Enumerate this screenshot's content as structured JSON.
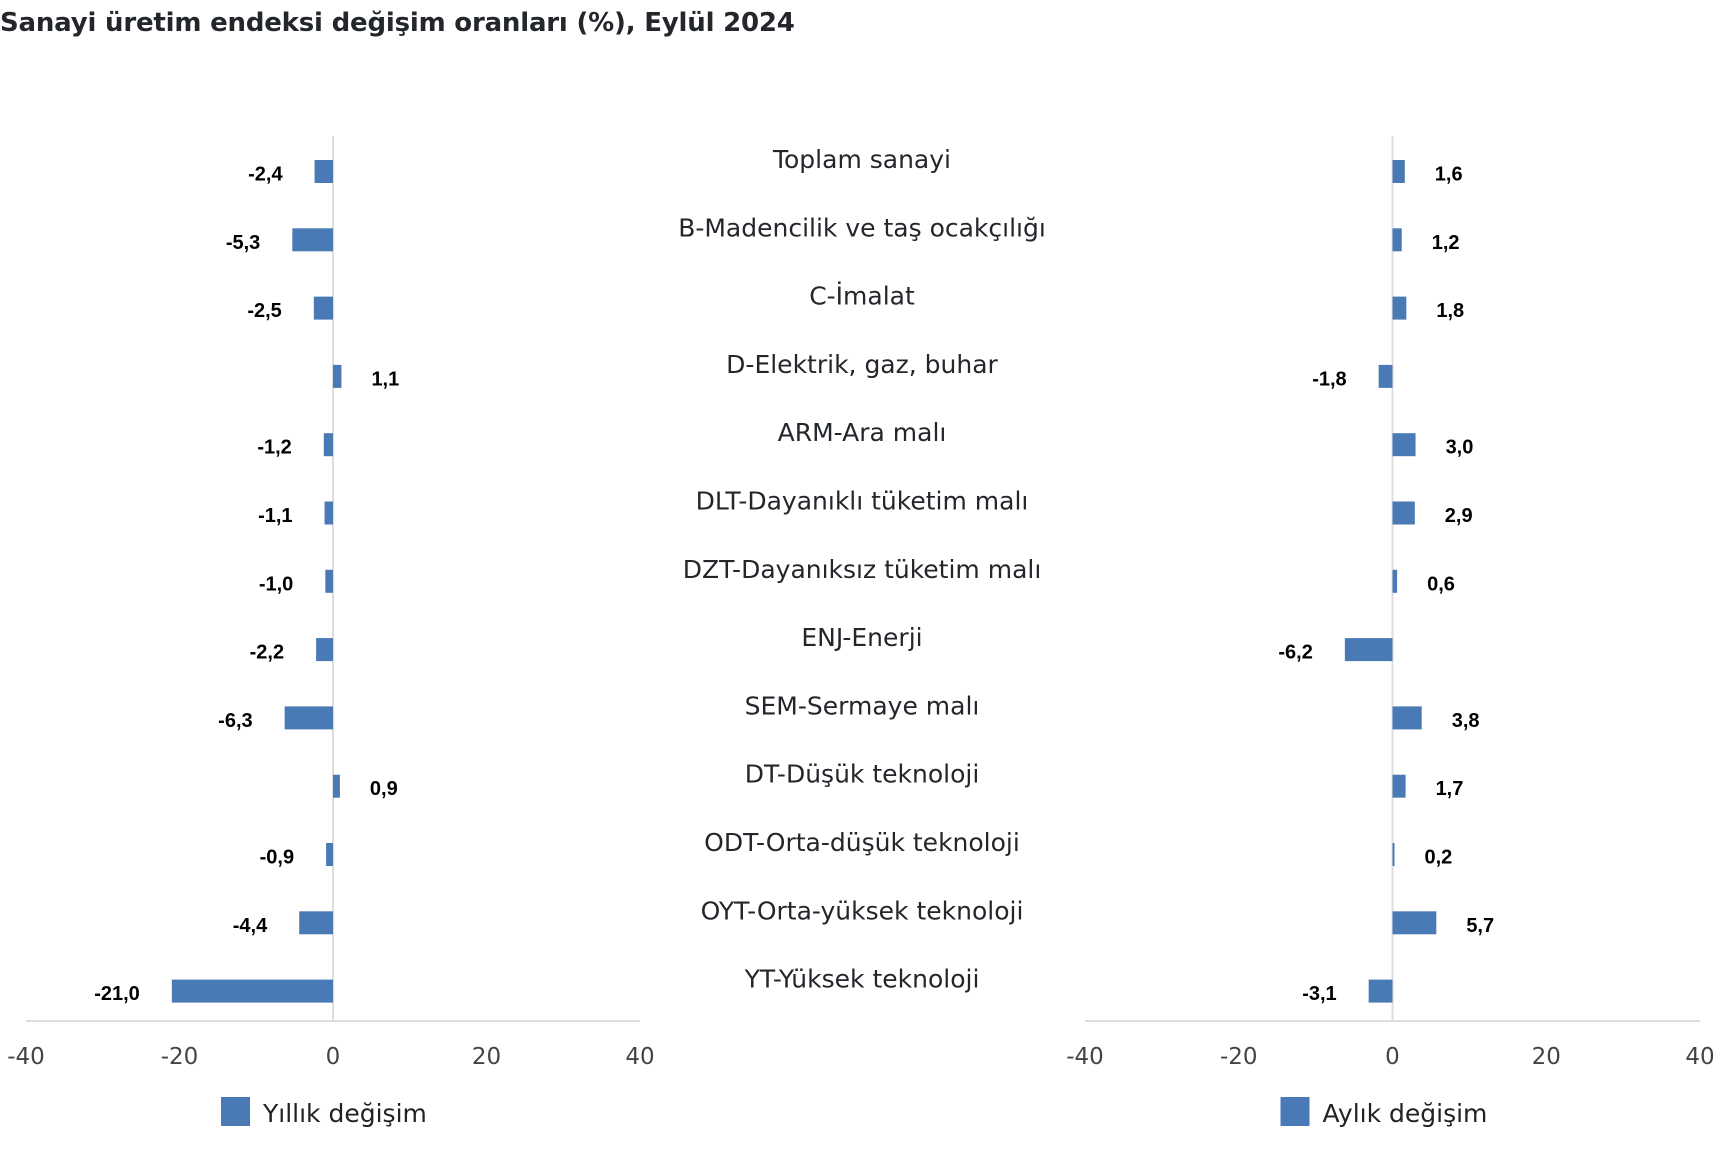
{
  "chart_data": [
    {
      "type": "bar",
      "orientation": "horizontal",
      "title": "Sanayi üretim endeksi değişim oranları (%), Eylül 2024",
      "panel": "left",
      "categories": [
        "Toplam sanayi",
        "B-Madencilik ve taş ocakçılığı",
        "C-İmalat",
        "D-Elektrik, gaz, buhar",
        "ARM-Ara malı",
        "DLT-Dayanıklı tüketim malı",
        "DZT-Dayanıksız tüketim malı",
        "ENJ-Enerji",
        "SEM-Sermaye malı",
        "DT-Düşük teknoloji",
        "ODT-Orta-düşük teknoloji",
        "OYT-Orta-yüksek teknoloji",
        "YT-Yüksek teknoloji"
      ],
      "series": [
        {
          "name": "Yıllık değişim",
          "color": "#4a7ab5",
          "values": [
            -2.4,
            -5.3,
            -2.5,
            1.1,
            -1.2,
            -1.1,
            -1.0,
            -2.2,
            -6.3,
            0.9,
            -0.9,
            -4.4,
            -21.0
          ],
          "labels": [
            "-2,4",
            "-5,3",
            "-2,5",
            "1,1",
            "-1,2",
            "-1,1",
            "-1,0",
            "-2,2",
            "-6,3",
            "0,9",
            "-0,9",
            "-4,4",
            "-21,0"
          ]
        }
      ],
      "xlim": [
        -40,
        40
      ],
      "xticks": [
        -40,
        -20,
        0,
        20,
        40
      ],
      "xtick_labels": [
        "-40",
        "-20",
        "0",
        "20",
        "40"
      ],
      "xlabel": "",
      "ylabel": "",
      "grid": false,
      "legend": "bottom"
    },
    {
      "type": "bar",
      "orientation": "horizontal",
      "panel": "right",
      "categories": [
        "Toplam sanayi",
        "B-Madencilik ve taş ocakçılığı",
        "C-İmalat",
        "D-Elektrik, gaz, buhar",
        "ARM-Ara malı",
        "DLT-Dayanıklı tüketim malı",
        "DZT-Dayanıksız tüketim malı",
        "ENJ-Enerji",
        "SEM-Sermaye malı",
        "DT-Düşük teknoloji",
        "ODT-Orta-düşük teknoloji",
        "OYT-Orta-yüksek teknoloji",
        "YT-Yüksek teknoloji"
      ],
      "series": [
        {
          "name": "Aylık değişim",
          "color": "#4a7ab5",
          "values": [
            1.6,
            1.2,
            1.8,
            -1.8,
            3.0,
            2.9,
            0.6,
            -6.2,
            3.8,
            1.7,
            0.2,
            5.7,
            -3.1
          ],
          "labels": [
            "1,6",
            "1,2",
            "1,8",
            "-1,8",
            "3,0",
            "2,9",
            "0,6",
            "-6,2",
            "3,8",
            "1,7",
            "0,2",
            "5,7",
            "-3,1"
          ]
        }
      ],
      "xlim": [
        -40,
        40
      ],
      "xticks": [
        -40,
        -20,
        0,
        20,
        40
      ],
      "xtick_labels": [
        "-40",
        "-20",
        "0",
        "20",
        "40"
      ],
      "xlabel": "",
      "ylabel": "",
      "grid": false,
      "legend": "bottom"
    }
  ],
  "colors": {
    "bar": "#4a7ab5",
    "axis": "#dddddd",
    "text": "#23262b"
  }
}
